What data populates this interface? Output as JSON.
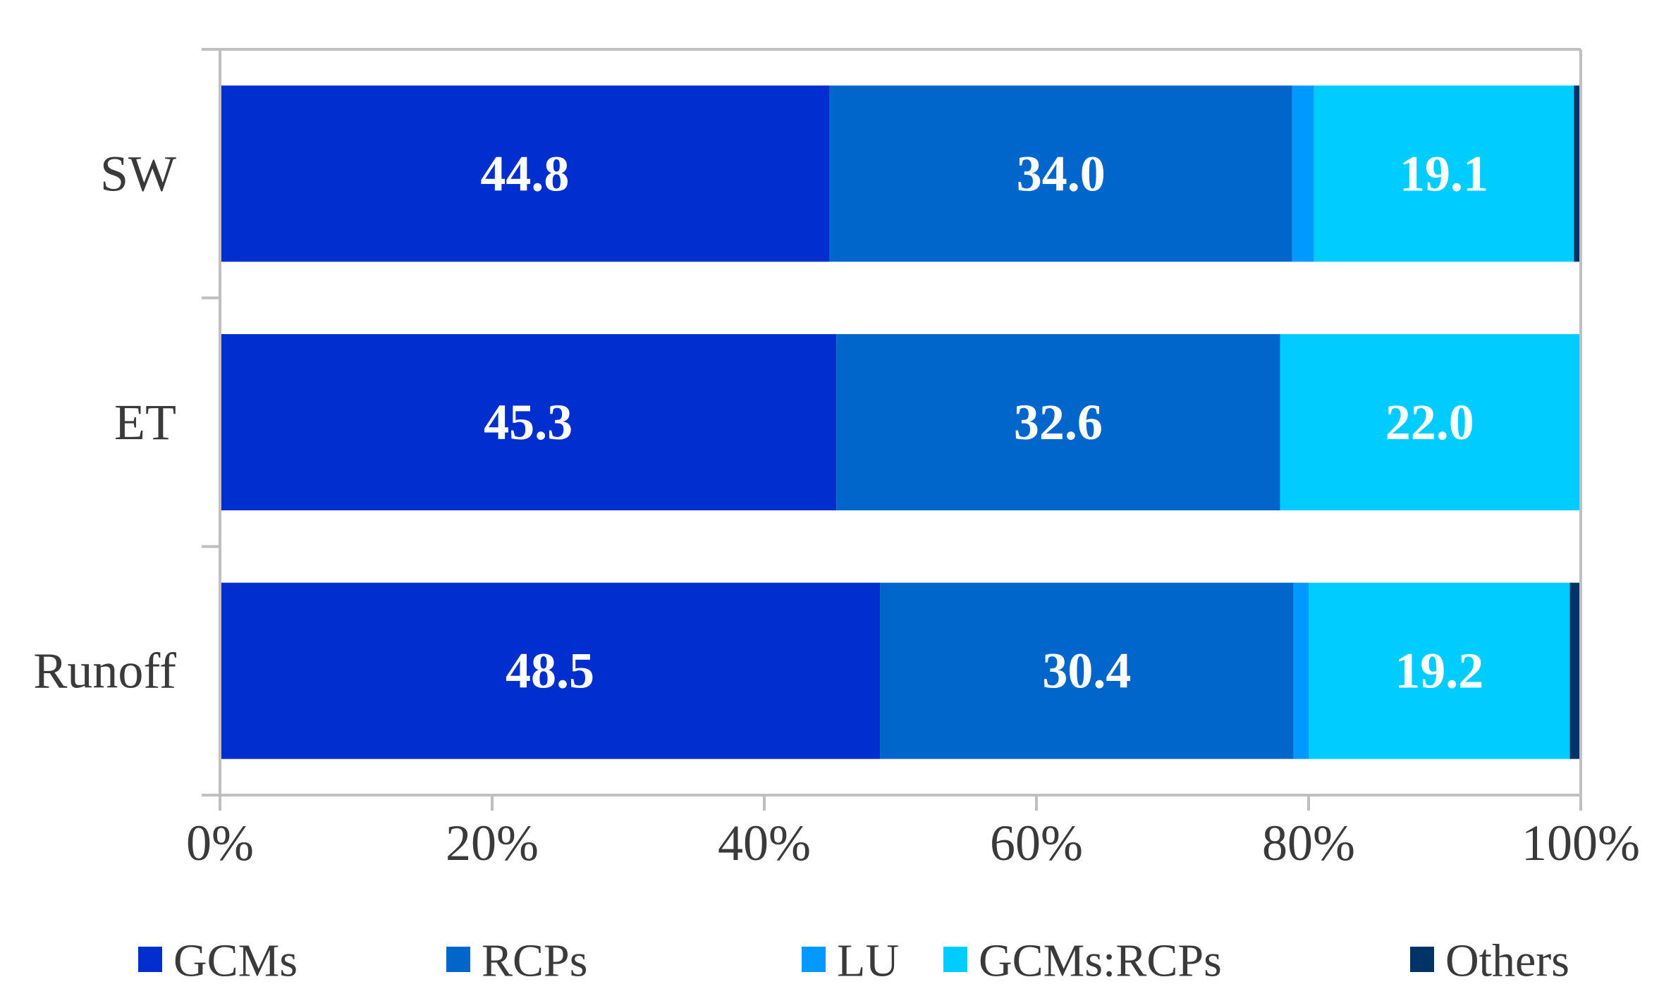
{
  "chart_data": {
    "type": "bar",
    "orientation": "horizontal",
    "stacked": true,
    "categories": [
      "SW",
      "ET",
      "Runoff"
    ],
    "series": [
      {
        "name": "GCMs",
        "color": "#002ecf",
        "values": [
          44.8,
          45.3,
          48.5
        ],
        "labels": [
          "44.8",
          "45.3",
          "48.5"
        ]
      },
      {
        "name": "RCPs",
        "color": "#0066cc",
        "values": [
          34.0,
          32.6,
          30.4
        ],
        "labels": [
          "34.0",
          "32.6",
          "30.4"
        ]
      },
      {
        "name": "LU",
        "color": "#0099ff",
        "values": [
          1.6,
          0.0,
          1.1
        ],
        "labels": [
          "",
          "",
          ""
        ]
      },
      {
        "name": "GCMs:RCPs",
        "color": "#00ccff",
        "values": [
          19.1,
          22.0,
          19.2
        ],
        "labels": [
          "19.1",
          "22.0",
          "19.2"
        ]
      },
      {
        "name": "Others",
        "color": "#003366",
        "values": [
          0.5,
          0.1,
          0.8
        ],
        "labels": [
          "",
          "",
          ""
        ]
      }
    ],
    "xlim": [
      0,
      100
    ],
    "xticks": [
      "0%",
      "20%",
      "40%",
      "60%",
      "80%",
      "100%"
    ],
    "title": "",
    "xlabel": "",
    "ylabel": "",
    "grid": false,
    "legend_position": "bottom"
  }
}
